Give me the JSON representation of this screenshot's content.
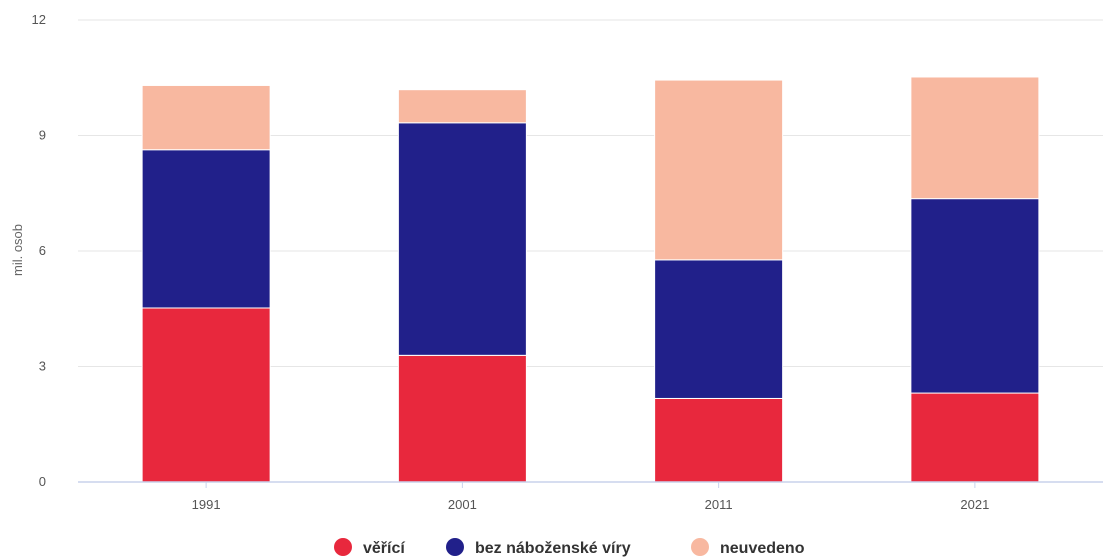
{
  "chart_data": {
    "type": "bar",
    "stacked": true,
    "categories": [
      "1991",
      "2001",
      "2011",
      "2021"
    ],
    "series": [
      {
        "name": "věřící",
        "color": "#e8283d",
        "values": [
          4.52,
          3.29,
          2.17,
          2.31
        ]
      },
      {
        "name": "bez náboženské víry",
        "color": "#21208a",
        "values": [
          4.11,
          6.04,
          3.6,
          5.05
        ]
      },
      {
        "name": "neuvedeno",
        "color": "#f8b8a0",
        "values": [
          1.67,
          0.86,
          4.67,
          3.16
        ]
      }
    ],
    "ylabel": "mil. osob",
    "ylim": [
      0,
      12
    ],
    "yticks": [
      0,
      3,
      6,
      9,
      12
    ],
    "grid": true,
    "legend": "bottom-center"
  }
}
